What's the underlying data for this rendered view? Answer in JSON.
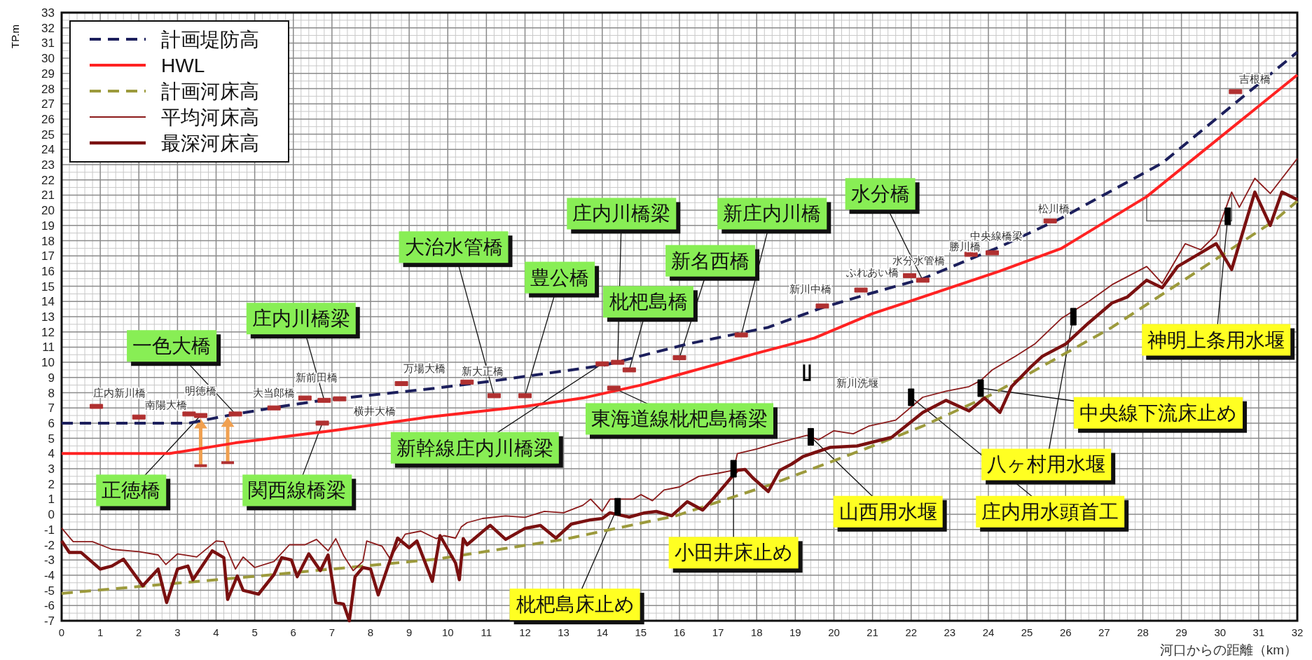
{
  "chart_data": {
    "type": "line",
    "ylabel": "TP.m",
    "xlabel": "河口からの距離（km）",
    "xlim": [
      0,
      32
    ],
    "ylim": [
      -7,
      33
    ],
    "xticks": [
      0,
      1,
      2,
      3,
      4,
      5,
      6,
      7,
      8,
      9,
      10,
      11,
      12,
      13,
      14,
      15,
      16,
      17,
      18,
      19,
      20,
      21,
      22,
      23,
      24,
      25,
      26,
      27,
      28,
      29,
      30,
      31,
      32
    ],
    "yticks": [
      -7,
      -6,
      -5,
      -4,
      -3,
      -2,
      -1,
      0,
      1,
      2,
      3,
      4,
      5,
      6,
      7,
      8,
      9,
      10,
      11,
      12,
      13,
      14,
      15,
      16,
      17,
      18,
      19,
      20,
      21,
      22,
      23,
      24,
      25,
      26,
      27,
      28,
      29,
      30,
      31,
      32,
      33
    ],
    "grid": true,
    "legend": "top left",
    "series": [
      {
        "name": "計画堤防高",
        "color": "#1c1f5c",
        "line_style": "dashed",
        "x": [
          0,
          3.3,
          4.4,
          5.7,
          6.75,
          9.7,
          11.1,
          14.05,
          16.2,
          18.3,
          19.7,
          20.9,
          22.3,
          24.3,
          25.9,
          28.5,
          32
        ],
        "values": [
          6.0,
          6.0,
          6.55,
          7.1,
          7.5,
          8.3,
          8.75,
          9.8,
          11.2,
          12.3,
          13.6,
          14.5,
          15.5,
          17.6,
          19.5,
          23.1,
          30.4
        ]
      },
      {
        "name": "HWL",
        "color": "#ff2222",
        "line_style": "solid",
        "x": [
          0,
          2.8,
          4.5,
          7,
          9.5,
          12,
          13.5,
          15,
          16,
          18,
          19.5,
          21,
          24.3,
          25.9,
          28.1,
          32
        ],
        "values": [
          4.0,
          4.0,
          4.7,
          5.5,
          6.4,
          7.1,
          7.65,
          8.5,
          9.2,
          10.6,
          11.6,
          13.2,
          16.0,
          17.5,
          20.9,
          28.9
        ]
      },
      {
        "name": "計画河床高",
        "color": "#9c9a3c",
        "line_style": "dashed",
        "x": [
          0,
          4.9,
          9.7,
          13.0,
          15.9,
          18.3,
          20.8,
          22.3,
          24.1,
          27.2,
          31.4,
          32
        ],
        "values": [
          -5.2,
          -4.1,
          -2.95,
          -1.65,
          -0.1,
          1.9,
          4.3,
          5.8,
          7.9,
          12.3,
          19.3,
          20.6
        ]
      },
      {
        "name": "平均河床高",
        "color": "#8b1a1a",
        "line_style": "solid",
        "x": [
          0,
          0.3,
          0.8,
          1.3,
          2.0,
          2.5,
          2.7,
          3.0,
          3.5,
          4.0,
          4.2,
          4.5,
          4.7,
          5.0,
          5.5,
          5.9,
          6.3,
          6.6,
          6.9,
          7.1,
          7.3,
          7.55,
          7.8,
          7.9,
          8.3,
          8.5,
          8.9,
          9.3,
          9.7,
          9.9,
          10.2,
          10.35,
          10.5,
          10.9,
          11.5,
          12.0,
          12.5,
          13.0,
          13.5,
          13.7,
          14.0,
          14.2,
          14.8,
          15.0,
          15.3,
          15.6,
          16.0,
          16.5,
          17.0,
          17.4,
          17.5,
          18.0,
          18.4,
          19.0,
          19.3,
          19.6,
          20.0,
          20.5,
          20.9,
          21.6,
          22.3,
          22.9,
          23.5,
          23.8,
          24.1,
          24.7,
          25.2,
          25.9,
          26.6,
          27.2,
          28.1,
          28.5,
          29.1,
          29.5,
          29.9,
          30.3,
          30.5,
          30.9,
          31.3,
          32
        ],
        "values": [
          -0.9,
          -1.8,
          -1.8,
          -2.3,
          -2.45,
          -2.67,
          -3.3,
          -2.6,
          -2.8,
          -1.75,
          -1.8,
          -3.6,
          -2.8,
          -3.5,
          -3.1,
          -2.0,
          -2.0,
          -1.65,
          -2.4,
          -1.6,
          -2.7,
          -3.7,
          -3.1,
          -1.75,
          -2.1,
          -2.9,
          -1.3,
          -1.1,
          -1.6,
          -1.4,
          -1.56,
          -0.83,
          -0.55,
          -0.27,
          -0.1,
          -0.2,
          0.2,
          0.1,
          0.6,
          1.0,
          0.2,
          1.0,
          1.0,
          1.3,
          0.9,
          1.6,
          1.8,
          2.5,
          2.7,
          2.9,
          4.0,
          4.3,
          4.6,
          5.0,
          5.2,
          4.9,
          5.5,
          5.3,
          5.8,
          6.2,
          7.7,
          8.1,
          8.4,
          8.8,
          9.5,
          10.4,
          11.2,
          12.9,
          14.0,
          15.1,
          16.3,
          15.2,
          17.8,
          17.4,
          18.4,
          21.2,
          20.2,
          22.1,
          21.1,
          23.4
        ]
      },
      {
        "name": "最深河床高",
        "color": "#7a1010",
        "line_style": "solid",
        "x": [
          0,
          0.2,
          0.5,
          1.0,
          1.3,
          1.6,
          2.1,
          2.5,
          2.72,
          3.0,
          3.27,
          3.4,
          3.9,
          4.2,
          4.3,
          4.55,
          4.7,
          5.1,
          5.5,
          5.7,
          5.95,
          6.1,
          6.4,
          6.7,
          6.9,
          7.1,
          7.3,
          7.45,
          7.6,
          7.8,
          8.0,
          8.2,
          8.7,
          9.0,
          9.2,
          9.6,
          9.8,
          10.2,
          10.3,
          10.4,
          10.5,
          11.0,
          11.1,
          11.5,
          12.0,
          12.4,
          12.8,
          13.2,
          13.7,
          14.0,
          14.2,
          14.7,
          15.1,
          15.4,
          15.8,
          16.2,
          16.6,
          16.9,
          17.2,
          17.5,
          17.7,
          17.9,
          18.3,
          18.6,
          18.9,
          19.2,
          19.5,
          19.9,
          20.6,
          21.5,
          22.3,
          22.9,
          23.5,
          23.9,
          24.3,
          24.6,
          25.1,
          25.4,
          26.0,
          26.6,
          27.2,
          27.6,
          28.1,
          28.5,
          28.9,
          29.5,
          29.9,
          30.3,
          30.9,
          31.3,
          31.6,
          32
        ],
        "values": [
          -1.75,
          -2.5,
          -2.5,
          -3.6,
          -3.4,
          -2.95,
          -4.7,
          -3.6,
          -5.8,
          -3.6,
          -3.4,
          -4.3,
          -2.4,
          -2.85,
          -5.6,
          -4.05,
          -5.0,
          -5.25,
          -3.96,
          -2.85,
          -3.0,
          -4.1,
          -2.6,
          -3.7,
          -2.67,
          -5.8,
          -5.9,
          -7,
          -4.1,
          -3.5,
          -3.6,
          -5.3,
          -1.56,
          -2.2,
          -1.75,
          -4.4,
          -1.4,
          -3.2,
          -4.3,
          -1.6,
          -2.0,
          -0.92,
          -0.73,
          -1.65,
          -0.92,
          -0.73,
          -1.56,
          -0.64,
          -0.36,
          -0.27,
          0.1,
          -0.18,
          0.1,
          0.19,
          -0.09,
          0.83,
          0.28,
          1.1,
          2.0,
          2.9,
          2.95,
          2.4,
          1.5,
          2.9,
          3.3,
          3.8,
          4.06,
          4.4,
          4.5,
          5.07,
          6.7,
          7.5,
          6.8,
          7.65,
          6.7,
          8.4,
          9.7,
          10.4,
          11.2,
          12.6,
          13.9,
          14.3,
          15.4,
          14.9,
          16.3,
          17.2,
          17.8,
          16.1,
          21.2,
          19.0,
          21.2,
          20.7
        ]
      },
      {
        "type": "scatter",
        "color": "#b03030",
        "x": [
          0.9,
          2.0,
          3.3,
          5.5,
          6.3,
          7.2,
          8.8,
          10.5,
          19.7,
          20.7,
          21.96,
          23.55,
          24.1,
          25.6,
          30.4,
          4.5,
          3.6,
          6.8,
          6.75,
          11.2,
          12.0,
          14.0,
          14.3,
          14.7,
          14.4,
          16.0,
          17.6,
          22.3
        ],
        "values": [
          7.1,
          6.4,
          6.6,
          7.0,
          7.65,
          7.6,
          8.6,
          8.7,
          13.7,
          14.75,
          15.7,
          17.1,
          17.2,
          19.3,
          27.8,
          6.6,
          6.5,
          7.5,
          6.0,
          7.8,
          7.8,
          9.9,
          8.3,
          9.5,
          10.0,
          10.3,
          11.8,
          15.4
        ]
      },
      {
        "type": "scatter",
        "color": "#000000",
        "x": [
          19.3,
          14.4,
          17.4,
          19.4,
          22.0,
          26.2,
          23.8,
          30.2
        ],
        "values": [
          9.3,
          0.5,
          3.0,
          5.1,
          7.7,
          13.0,
          8.3,
          19.6
        ]
      }
    ],
    "annotations": [
      "庄内新川橋",
      "南陽大橋",
      "明徳橋",
      "大当郎橋",
      "新前田橋",
      "横井大橋",
      "万場大橋",
      "新大正橋",
      "新川中橋",
      "ふれあい橋",
      "水分水管橋",
      "中央線橋梁",
      "勝川橋",
      "松川橋",
      "吉根橋",
      "新川洗堰",
      {
        "text": "一色大橋",
        "x": 4.5,
        "y": 6.6
      },
      {
        "text": "正徳橋",
        "x": 3.6,
        "y": 6.5
      },
      {
        "text": "庄内川橋梁",
        "x": 6.8,
        "y": 7.5
      },
      {
        "text": "関西線橋梁",
        "x": 6.75,
        "y": 6.0
      },
      {
        "text": "大治水管橋",
        "x": 11.2,
        "y": 7.8
      },
      {
        "text": "豊公橋",
        "x": 12.0,
        "y": 7.8
      },
      {
        "text": "新幹線庄内川橋梁",
        "x": 14.0,
        "y": 9.9
      },
      {
        "text": "東海道線枇杷島橋梁",
        "x": 14.3,
        "y": 8.3
      },
      {
        "text": "枇杷島橋",
        "x": 14.7,
        "y": 9.5
      },
      {
        "text": "庄内川橋梁",
        "x": 14.4,
        "y": 10.0
      },
      {
        "text": "新名西橋",
        "x": 16.0,
        "y": 10.3
      },
      {
        "text": "新庄内川橋",
        "x": 17.6,
        "y": 11.8
      },
      {
        "text": "水分橋",
        "x": 22.3,
        "y": 15.4
      },
      {
        "text": "枇杷島床止め",
        "x": 14.4,
        "y": 0.5
      },
      {
        "text": "小田井床止め",
        "x": 17.4,
        "y": 3.0
      },
      {
        "text": "山西用水堰",
        "x": 19.4,
        "y": 5.1
      },
      {
        "text": "庄内用水頭首工",
        "x": 22.0,
        "y": 7.7
      },
      {
        "text": "八ヶ村用水堰",
        "x": 26.2,
        "y": 13.0
      },
      {
        "text": "中央線下流床止め",
        "x": 23.8,
        "y": 8.3
      },
      {
        "text": "神明上条用水堰",
        "x": 30.2,
        "y": 19.6
      }
    ]
  }
}
